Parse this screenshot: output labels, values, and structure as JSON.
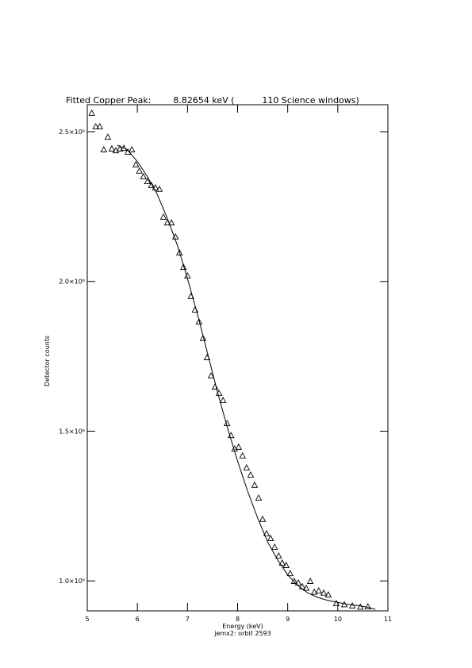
{
  "chart_data": {
    "type": "scatter",
    "title": "Fitted Copper Peak:        8.82654 keV (          110 Science windows)",
    "x_label": "Energy (keV)",
    "subtitle": "jemx2: orbit 2593",
    "y_label": "Detector counts",
    "color": "#000000",
    "xlim": [
      5,
      11
    ],
    "xticks": [
      5,
      6,
      7,
      8,
      9,
      10,
      11
    ],
    "ylim": [
      900000,
      2590000
    ],
    "yticks": [
      {
        "value": 1000000,
        "label": "1.0×10⁶"
      },
      {
        "value": 1500000,
        "label": "1.5×10⁶"
      },
      {
        "value": 2000000,
        "label": "2.0×10⁶"
      },
      {
        "value": 2500000,
        "label": "2.5×10⁶"
      }
    ],
    "points": {
      "x": [
        5.09,
        5.17,
        5.25,
        5.33,
        5.41,
        5.49,
        5.57,
        5.65,
        5.73,
        5.81,
        5.89,
        5.97,
        6.04,
        6.12,
        6.2,
        6.28,
        6.36,
        6.44,
        6.52,
        6.6,
        6.68,
        6.76,
        6.84,
        6.92,
        7.0,
        7.07,
        7.15,
        7.23,
        7.31,
        7.39,
        7.47,
        7.55,
        7.63,
        7.71,
        7.79,
        7.87,
        7.94,
        8.02,
        8.1,
        8.18,
        8.26,
        8.34,
        8.42,
        8.5,
        8.58,
        8.66,
        8.74,
        8.82,
        8.89,
        8.97,
        9.05,
        9.13,
        9.21,
        9.29,
        9.37,
        9.45,
        9.53,
        9.62,
        9.72,
        9.81,
        9.97,
        10.13,
        10.29,
        10.45,
        10.6
      ],
      "values": [
        2561000,
        2516000,
        2516000,
        2439000,
        2481000,
        2442000,
        2436000,
        2442000,
        2444000,
        2431000,
        2439000,
        2389000,
        2368000,
        2349000,
        2333000,
        2320000,
        2312000,
        2307000,
        2214000,
        2195000,
        2195000,
        2148000,
        2095000,
        2047000,
        2018000,
        1949000,
        1904000,
        1864000,
        1809000,
        1745000,
        1684000,
        1647000,
        1626000,
        1602000,
        1525000,
        1485000,
        1440000,
        1446000,
        1417000,
        1377000,
        1353000,
        1319000,
        1276000,
        1205000,
        1157000,
        1141000,
        1112000,
        1083000,
        1059000,
        1051000,
        1024000,
        998000,
        993000,
        980000,
        975000,
        998000,
        962000,
        966000,
        959000,
        953000,
        924000,
        920000,
        916000,
        912000,
        913000
      ]
    },
    "fit": {
      "x": [
        5.6,
        5.8,
        6.0,
        6.2,
        6.4,
        6.6,
        6.8,
        7.0,
        7.2,
        7.4,
        7.6,
        7.8,
        8.0,
        8.2,
        8.4,
        8.6,
        8.8,
        9.0,
        9.2,
        9.4,
        9.6,
        9.8,
        10.0,
        10.2,
        10.4,
        10.6,
        10.75
      ],
      "values": [
        2455000,
        2440000,
        2400000,
        2350000,
        2290000,
        2210000,
        2120000,
        2010000,
        1890000,
        1760000,
        1630000,
        1510000,
        1400000,
        1300000,
        1210000,
        1130000,
        1070000,
        1020000,
        985000,
        960000,
        945000,
        935000,
        928000,
        922000,
        918000,
        912000,
        905000
      ]
    }
  }
}
